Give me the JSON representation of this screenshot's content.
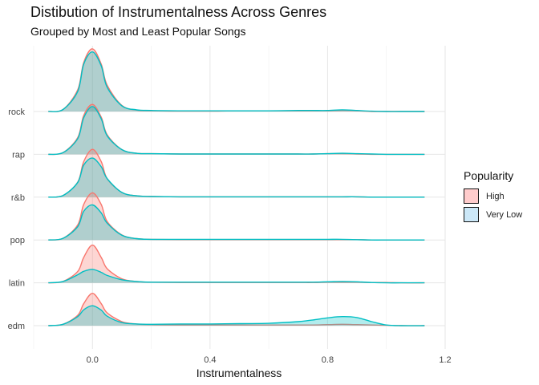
{
  "chart_data": {
    "type": "area",
    "title": "Distibution of Instrumentalness Across Genres",
    "subtitle": "Grouped by Most and Least Popular Songs",
    "xlabel": "Instrumentalness",
    "ylabel": "",
    "xlim": [
      -0.2,
      1.2
    ],
    "xticks": [
      0.0,
      0.4,
      0.8,
      1.2
    ],
    "xtick_labels": [
      "0.0",
      "0.4",
      "0.8",
      "1.2"
    ],
    "categories": [
      "edm",
      "latin",
      "pop",
      "r&b",
      "rap",
      "rock"
    ],
    "grid": true,
    "legend": {
      "title": "Popularity",
      "placement": "right",
      "entries": [
        {
          "label": "High",
          "line_color": "#F8766D",
          "fill_color": "#FFCCCC"
        },
        {
          "label": "Very Low",
          "line_color": "#00BFC4",
          "fill_color": "#CCE8F8"
        }
      ]
    },
    "x": [
      -0.15,
      -0.1,
      -0.05,
      -0.03,
      0.0,
      0.03,
      0.05,
      0.1,
      0.15,
      0.2,
      0.3,
      0.4,
      0.5,
      0.6,
      0.7,
      0.75,
      0.8,
      0.85,
      0.9,
      0.95,
      1.0,
      1.05,
      1.13
    ],
    "ridges": [
      {
        "genre": "edm",
        "series": [
          {
            "name": "High",
            "values": [
              0.0,
              0.04,
              0.31,
              0.65,
              0.96,
              0.65,
              0.38,
              0.12,
              0.05,
              0.03,
              0.02,
              0.02,
              0.02,
              0.02,
              0.02,
              0.02,
              0.03,
              0.04,
              0.03,
              0.02,
              0.01,
              0.0,
              0.0
            ]
          },
          {
            "name": "Very Low",
            "values": [
              0.0,
              0.04,
              0.27,
              0.47,
              0.59,
              0.46,
              0.28,
              0.09,
              0.05,
              0.04,
              0.05,
              0.05,
              0.06,
              0.07,
              0.12,
              0.17,
              0.23,
              0.27,
              0.24,
              0.12,
              0.02,
              0.0,
              0.0
            ]
          }
        ]
      },
      {
        "genre": "latin",
        "series": [
          {
            "name": "High",
            "values": [
              0.0,
              0.04,
              0.34,
              0.75,
              1.12,
              0.75,
              0.42,
              0.12,
              0.04,
              0.02,
              0.01,
              0.01,
              0.01,
              0.01,
              0.01,
              0.01,
              0.02,
              0.02,
              0.02,
              0.01,
              0.01,
              0.0,
              0.0
            ]
          },
          {
            "name": "Very Low",
            "values": [
              0.0,
              0.04,
              0.24,
              0.34,
              0.4,
              0.31,
              0.22,
              0.09,
              0.04,
              0.02,
              0.02,
              0.02,
              0.02,
              0.02,
              0.02,
              0.02,
              0.03,
              0.04,
              0.03,
              0.01,
              0.0,
              0.0,
              0.0
            ]
          }
        ]
      },
      {
        "genre": "pop",
        "series": [
          {
            "name": "High",
            "values": [
              0.0,
              0.05,
              0.45,
              1.05,
              1.4,
              1.05,
              0.55,
              0.15,
              0.04,
              0.02,
              0.01,
              0.01,
              0.01,
              0.01,
              0.01,
              0.01,
              0.01,
              0.01,
              0.01,
              0.0,
              0.0,
              0.0,
              0.0
            ]
          },
          {
            "name": "Very Low",
            "values": [
              0.0,
              0.05,
              0.4,
              0.85,
              1.04,
              0.8,
              0.5,
              0.14,
              0.04,
              0.02,
              0.02,
              0.02,
              0.02,
              0.02,
              0.02,
              0.02,
              0.02,
              0.02,
              0.01,
              0.0,
              0.0,
              0.0,
              0.0
            ]
          }
        ]
      },
      {
        "genre": "r&b",
        "series": [
          {
            "name": "High",
            "values": [
              0.0,
              0.05,
              0.45,
              1.05,
              1.42,
              1.05,
              0.55,
              0.14,
              0.04,
              0.02,
              0.01,
              0.01,
              0.01,
              0.01,
              0.01,
              0.01,
              0.01,
              0.01,
              0.01,
              0.0,
              0.0,
              0.0,
              0.0
            ]
          },
          {
            "name": "Very Low",
            "values": [
              0.0,
              0.05,
              0.44,
              0.95,
              1.16,
              0.9,
              0.55,
              0.14,
              0.04,
              0.02,
              0.01,
              0.01,
              0.01,
              0.01,
              0.01,
              0.01,
              0.01,
              0.01,
              0.01,
              0.0,
              0.0,
              0.0,
              0.0
            ]
          }
        ]
      },
      {
        "genre": "rap",
        "series": [
          {
            "name": "High",
            "values": [
              0.0,
              0.05,
              0.5,
              1.15,
              1.48,
              1.1,
              0.58,
              0.14,
              0.03,
              0.02,
              0.01,
              0.01,
              0.01,
              0.01,
              0.01,
              0.01,
              0.02,
              0.02,
              0.01,
              0.0,
              0.0,
              0.0,
              0.0
            ]
          },
          {
            "name": "Very Low",
            "values": [
              0.0,
              0.05,
              0.47,
              1.08,
              1.42,
              1.05,
              0.55,
              0.14,
              0.03,
              0.02,
              0.01,
              0.01,
              0.01,
              0.01,
              0.01,
              0.01,
              0.02,
              0.03,
              0.02,
              0.01,
              0.0,
              0.0,
              0.0
            ]
          }
        ]
      },
      {
        "genre": "rock",
        "series": [
          {
            "name": "High",
            "values": [
              0.0,
              0.06,
              0.65,
              1.45,
              1.86,
              1.4,
              0.78,
              0.18,
              0.04,
              0.02,
              0.01,
              0.01,
              0.02,
              0.02,
              0.02,
              0.02,
              0.02,
              0.03,
              0.02,
              0.0,
              0.0,
              0.0,
              0.0
            ]
          },
          {
            "name": "Very Low",
            "values": [
              0.0,
              0.06,
              0.6,
              1.4,
              1.77,
              1.35,
              0.72,
              0.17,
              0.05,
              0.03,
              0.02,
              0.02,
              0.02,
              0.02,
              0.03,
              0.03,
              0.03,
              0.05,
              0.03,
              0.01,
              0.0,
              0.0,
              0.0
            ]
          }
        ]
      }
    ]
  }
}
